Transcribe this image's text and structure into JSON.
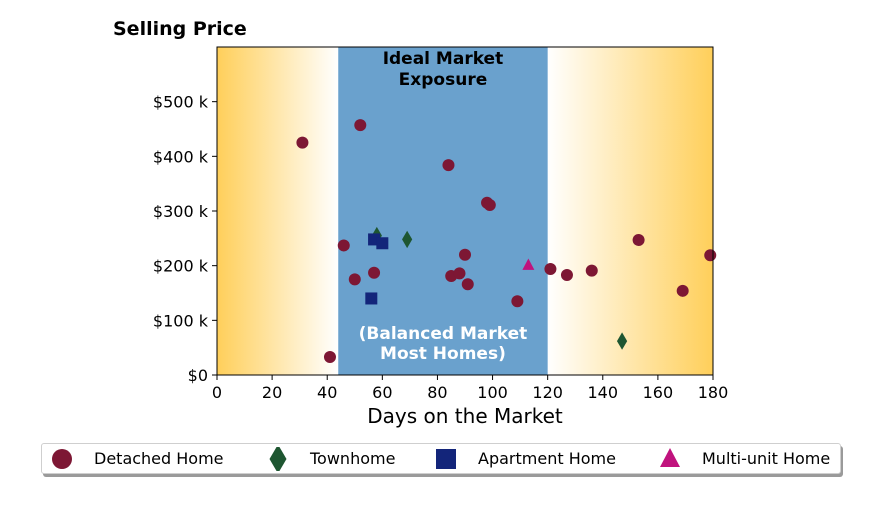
{
  "chart_data": {
    "type": "scatter",
    "title": "Selling Price",
    "xlabel": "Days on the Market",
    "ylabel": "",
    "xlim": [
      0,
      180
    ],
    "ylim": [
      0,
      600000
    ],
    "xticks": [
      0,
      20,
      40,
      60,
      80,
      100,
      120,
      140,
      160,
      180
    ],
    "xtick_labels": [
      "0",
      "20",
      "40",
      "60",
      "80",
      "100",
      "120",
      "140",
      "160",
      "180"
    ],
    "yticks": [
      0,
      100000,
      200000,
      300000,
      400000,
      500000
    ],
    "ytick_labels": [
      "$0",
      "$100 k",
      "$200 k",
      "$300 k",
      "$400 k",
      "$500 k"
    ],
    "grid": false,
    "legend_position": "below",
    "shaded_region": {
      "x": [
        44,
        120
      ],
      "color": "#6aa1cd",
      "label_top": [
        "Ideal Market",
        "Exposure"
      ],
      "label_bottom": [
        "(Balanced Market",
        "Most Homes)"
      ]
    },
    "gradient_color": "#ffcf5a",
    "series": [
      {
        "name": "Detached Home",
        "marker": "circle",
        "color": "#7d1734",
        "points": [
          [
            31,
            425000
          ],
          [
            41,
            33000
          ],
          [
            46,
            237000
          ],
          [
            50,
            175000
          ],
          [
            52,
            457000
          ],
          [
            57,
            187000
          ],
          [
            84,
            384000
          ],
          [
            85,
            181000
          ],
          [
            88,
            186000
          ],
          [
            90,
            220000
          ],
          [
            91,
            166000
          ],
          [
            98,
            315000
          ],
          [
            99,
            311000
          ],
          [
            109,
            135000
          ],
          [
            121,
            194000
          ],
          [
            127,
            183000
          ],
          [
            136,
            191000
          ],
          [
            153,
            247000
          ],
          [
            169,
            154000
          ],
          [
            179,
            219000
          ]
        ]
      },
      {
        "name": "Townhome",
        "marker": "diamond",
        "color": "#1e5631",
        "points": [
          [
            58,
            255000
          ],
          [
            69,
            248000
          ],
          [
            147,
            62000
          ]
        ]
      },
      {
        "name": "Apartment Home",
        "marker": "square",
        "color": "#13257a",
        "points": [
          [
            56,
            140000
          ],
          [
            57,
            248000
          ],
          [
            60,
            241000
          ]
        ]
      },
      {
        "name": "Multi-unit Home",
        "marker": "triangle",
        "color": "#c0137d",
        "points": [
          [
            113,
            201000
          ]
        ]
      }
    ]
  }
}
